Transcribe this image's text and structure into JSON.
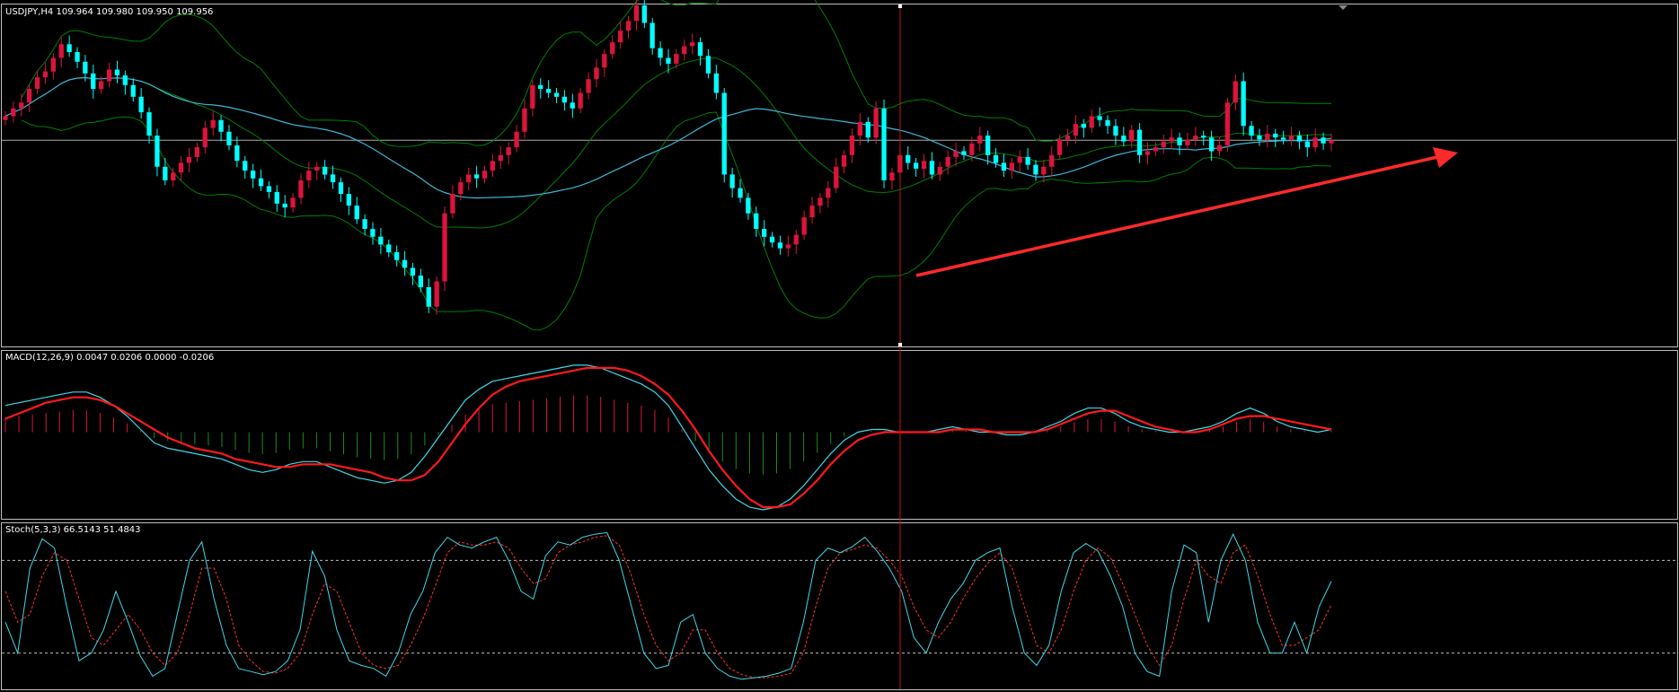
{
  "header": {
    "symbol_label": "USDJPY,H4  109.964 109.980 109.950 109.956",
    "macd_label": "MACD(12,26,9) 0.0047 0.0206 0.0000 -0.0206",
    "stoch_label": "Stoch(5,3,3) 66.5143 51.4843"
  },
  "colors": {
    "background": "#000000",
    "bull_candle": "#dc143c",
    "bear_candle": "#00ffff",
    "bands": "#008000",
    "middle_ma": "#3fb6d6",
    "horizontal_line": "#aaaaaa",
    "vertical_line": "#c81414",
    "arrow": "#ff2a2a",
    "macd_positive_hist": "#dc143c",
    "macd_negative_hist": "#1f8a1f",
    "macd_main": "#40d8e8",
    "macd_signal": "#ff1a1a",
    "stoch_main": "#40d8e8",
    "stoch_signal": "#ff3030",
    "pane_border": "#c0c0c0"
  },
  "chart_data": [
    {
      "type": "candlestick",
      "ylim": [
        108.9,
        110.65
      ],
      "horizontal_line_value": 109.956,
      "closes": [
        110.08,
        110.12,
        110.15,
        110.22,
        110.28,
        110.31,
        110.38,
        110.45,
        110.41,
        110.36,
        110.3,
        110.22,
        110.26,
        110.32,
        110.29,
        110.24,
        110.18,
        110.1,
        109.98,
        109.82,
        109.75,
        109.79,
        109.84,
        109.87,
        109.92,
        110.02,
        110.06,
        110.0,
        109.93,
        109.85,
        109.8,
        109.76,
        109.72,
        109.69,
        109.63,
        109.61,
        109.66,
        109.75,
        109.8,
        109.82,
        109.78,
        109.74,
        109.68,
        109.62,
        109.55,
        109.5,
        109.46,
        109.42,
        109.38,
        109.34,
        109.3,
        109.26,
        109.2,
        109.1,
        109.23,
        109.58,
        109.68,
        109.74,
        109.78,
        109.76,
        109.8,
        109.85,
        109.88,
        109.92,
        110.0,
        110.12,
        110.24,
        110.22,
        110.2,
        110.18,
        110.15,
        110.12,
        110.2,
        110.27,
        110.33,
        110.4,
        110.46,
        110.52,
        110.57,
        110.65,
        110.56,
        110.43,
        110.38,
        110.35,
        110.4,
        110.44,
        110.46,
        110.39,
        110.3,
        110.2,
        109.78,
        109.71,
        109.66,
        109.58,
        109.5,
        109.46,
        109.43,
        109.4,
        109.42,
        109.47,
        109.56,
        109.62,
        109.66,
        109.71,
        109.82,
        109.88,
        109.98,
        110.05,
        109.97,
        110.12,
        109.75,
        109.79,
        109.88,
        109.84,
        109.81,
        109.85,
        109.78,
        109.82,
        109.87,
        109.9,
        109.88,
        109.94,
        109.98,
        109.88,
        109.84,
        109.8,
        109.84,
        109.87,
        109.83,
        109.78,
        109.82,
        109.88,
        109.96,
        109.98,
        110.04,
        110.02,
        110.08,
        110.06,
        110.03,
        109.98,
        109.95,
        110.01,
        109.88,
        109.9,
        109.92,
        109.95,
        109.97,
        109.93,
        109.96,
        109.98,
        109.97,
        109.9,
        109.93,
        110.15,
        110.26,
        110.03,
        109.98,
        109.96,
        109.99,
        109.97,
        109.96,
        109.98,
        109.95,
        109.92,
        109.97,
        109.94,
        109.956
      ],
      "title": "USDJPY,H4"
    },
    {
      "type": "macd",
      "label": "MACD(12,26,9)",
      "ylim": [
        -0.32,
        0.3
      ],
      "main": [
        0.1,
        0.11,
        0.12,
        0.13,
        0.14,
        0.15,
        0.15,
        0.13,
        0.1,
        0.06,
        0.01,
        -0.04,
        -0.06,
        -0.07,
        -0.08,
        -0.09,
        -0.1,
        -0.12,
        -0.14,
        -0.15,
        -0.14,
        -0.12,
        -0.11,
        -0.11,
        -0.13,
        -0.15,
        -0.17,
        -0.18,
        -0.19,
        -0.18,
        -0.15,
        -0.09,
        -0.02,
        0.05,
        0.12,
        0.16,
        0.19,
        0.2,
        0.21,
        0.22,
        0.23,
        0.24,
        0.25,
        0.25,
        0.24,
        0.22,
        0.2,
        0.18,
        0.15,
        0.1,
        0.02,
        -0.06,
        -0.14,
        -0.2,
        -0.25,
        -0.28,
        -0.29,
        -0.28,
        -0.25,
        -0.2,
        -0.14,
        -0.08,
        -0.03,
        0.0,
        0.01,
        0.01,
        0.0,
        0.0,
        0.0,
        0.01,
        0.02,
        0.01,
        0.0,
        0.0,
        -0.01,
        -0.01,
        0.0,
        0.02,
        0.04,
        0.07,
        0.09,
        0.09,
        0.07,
        0.04,
        0.02,
        0.01,
        0.0,
        0.0,
        0.01,
        0.02,
        0.04,
        0.07,
        0.09,
        0.07,
        0.04,
        0.02,
        0.01,
        0.0,
        0.01
      ],
      "signal": [
        0.05,
        0.07,
        0.09,
        0.11,
        0.12,
        0.13,
        0.13,
        0.12,
        0.1,
        0.07,
        0.04,
        0.01,
        -0.02,
        -0.04,
        -0.06,
        -0.07,
        -0.08,
        -0.1,
        -0.11,
        -0.12,
        -0.13,
        -0.13,
        -0.12,
        -0.12,
        -0.12,
        -0.13,
        -0.14,
        -0.15,
        -0.17,
        -0.18,
        -0.18,
        -0.16,
        -0.11,
        -0.04,
        0.03,
        0.09,
        0.14,
        0.17,
        0.19,
        0.2,
        0.21,
        0.22,
        0.23,
        0.24,
        0.24,
        0.24,
        0.23,
        0.21,
        0.18,
        0.14,
        0.08,
        0.01,
        -0.07,
        -0.14,
        -0.2,
        -0.25,
        -0.28,
        -0.28,
        -0.27,
        -0.23,
        -0.18,
        -0.12,
        -0.07,
        -0.03,
        -0.01,
        0.0,
        0.0,
        0.0,
        0.0,
        0.0,
        0.01,
        0.01,
        0.01,
        0.0,
        0.0,
        0.0,
        0.0,
        0.01,
        0.03,
        0.05,
        0.07,
        0.08,
        0.08,
        0.06,
        0.04,
        0.02,
        0.01,
        0.0,
        0.0,
        0.01,
        0.03,
        0.05,
        0.06,
        0.06,
        0.05,
        0.04,
        0.03,
        0.02,
        0.01
      ]
    },
    {
      "type": "stochastic",
      "label": "Stoch(5,3,3)",
      "ylim": [
        0,
        100
      ],
      "levels": [
        80,
        20
      ],
      "main": [
        40,
        20,
        75,
        94,
        88,
        50,
        15,
        20,
        35,
        60,
        40,
        18,
        5,
        10,
        45,
        80,
        92,
        55,
        25,
        10,
        8,
        6,
        8,
        15,
        35,
        86,
        70,
        35,
        15,
        12,
        10,
        5,
        20,
        45,
        60,
        85,
        95,
        90,
        88,
        92,
        95,
        80,
        60,
        55,
        83,
        92,
        90,
        95,
        97,
        98,
        80,
        50,
        20,
        10,
        12,
        40,
        45,
        20,
        10,
        5,
        3,
        4,
        5,
        7,
        10,
        40,
        80,
        88,
        85,
        89,
        95,
        86,
        75,
        60,
        30,
        20,
        40,
        55,
        65,
        80,
        85,
        88,
        50,
        20,
        12,
        25,
        60,
        85,
        91,
        86,
        70,
        50,
        20,
        8,
        5,
        60,
        90,
        85,
        40,
        80,
        97,
        80,
        40,
        20,
        20,
        40,
        20,
        50,
        66.51
      ],
      "signal": [
        60,
        40,
        45,
        70,
        85,
        80,
        55,
        30,
        25,
        35,
        45,
        35,
        20,
        12,
        20,
        45,
        75,
        75,
        55,
        25,
        15,
        8,
        7,
        10,
        20,
        45,
        65,
        60,
        40,
        20,
        12,
        10,
        12,
        25,
        42,
        63,
        85,
        92,
        90,
        90,
        92,
        88,
        75,
        65,
        68,
        85,
        90,
        92,
        95,
        96,
        90,
        70,
        45,
        25,
        15,
        20,
        35,
        35,
        20,
        10,
        6,
        4,
        4,
        5,
        7,
        20,
        50,
        75,
        85,
        87,
        90,
        88,
        80,
        70,
        50,
        35,
        30,
        40,
        55,
        68,
        78,
        85,
        75,
        50,
        25,
        20,
        35,
        60,
        80,
        88,
        82,
        65,
        45,
        25,
        12,
        25,
        55,
        80,
        70,
        65,
        85,
        90,
        70,
        45,
        25,
        25,
        30,
        35,
        51.48
      ]
    }
  ]
}
